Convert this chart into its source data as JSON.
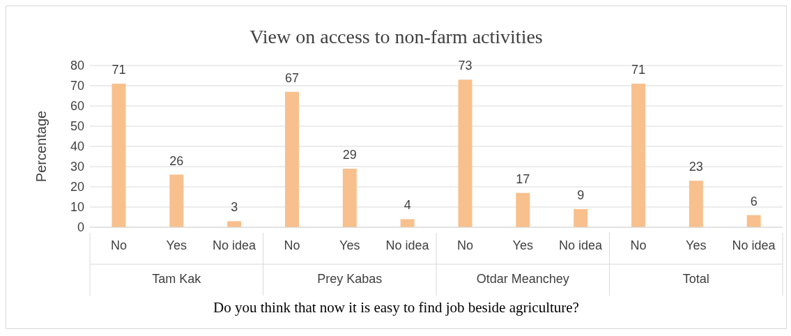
{
  "chart_data": {
    "type": "bar",
    "title": "View on access to non-farm activities",
    "xlabel": "Do you think that now it is easy to find job beside agriculture?",
    "ylabel": "Percentage",
    "categories": [
      "No",
      "Yes",
      "No idea",
      "No",
      "Yes",
      "No idea",
      "No",
      "Yes",
      "No idea",
      "No",
      "Yes",
      "No idea"
    ],
    "values": [
      71,
      26,
      3,
      67,
      29,
      4,
      73,
      17,
      9,
      71,
      23,
      6
    ],
    "color": "#f8c08d",
    "ylim": [
      0,
      80
    ],
    "yticks": [
      0,
      10,
      20,
      30,
      40,
      50,
      60,
      70,
      80
    ],
    "grid": "y",
    "data_labels": true,
    "annotations": [
      "Tam Kak",
      "Prey Kabas",
      "Otdar Meanchey",
      "Total"
    ]
  }
}
